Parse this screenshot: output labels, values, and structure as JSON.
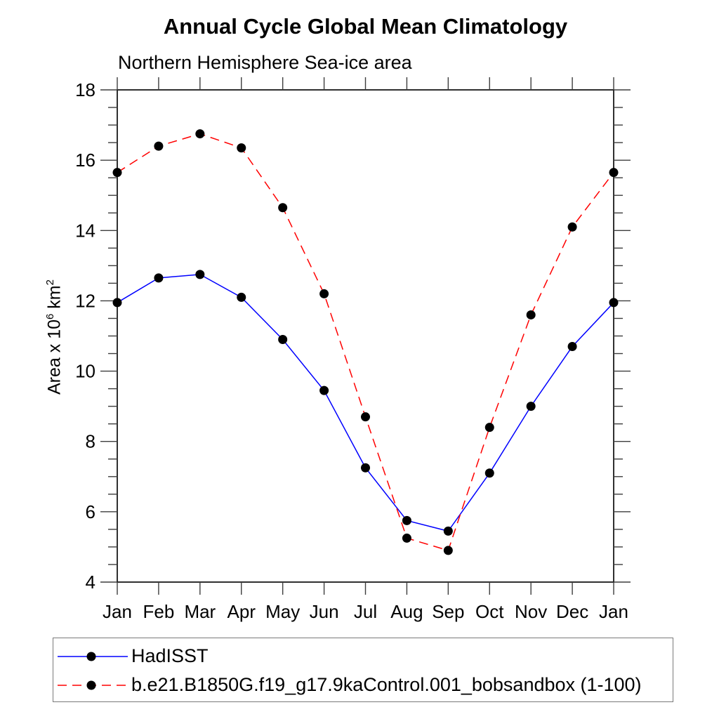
{
  "titles": {
    "main": "Annual Cycle Global Mean Climatology",
    "sub": "Northern Hemisphere Sea-ice area"
  },
  "y_axis": {
    "label_base": "Area x 10",
    "label_sup": "6",
    "label_unit": " km",
    "label_unit_sup": "2",
    "tick_labels": [
      "4",
      "6",
      "8",
      "10",
      "12",
      "14",
      "16",
      "18"
    ]
  },
  "x_axis": {
    "tick_labels": [
      "Jan",
      "Feb",
      "Mar",
      "Apr",
      "May",
      "Jun",
      "Jul",
      "Aug",
      "Sep",
      "Oct",
      "Nov",
      "Dec",
      "Jan"
    ]
  },
  "colors": {
    "hadisst_line": "#0000ff",
    "model_line": "#ff0000",
    "marker": "#000000",
    "axis": "#1a1a1a",
    "tick": "#3d3d3d"
  },
  "chart_data": {
    "type": "line",
    "title": "Annual Cycle Global Mean Climatology",
    "subtitle": "Northern Hemisphere Sea-ice area",
    "categories": [
      "Jan",
      "Feb",
      "Mar",
      "Apr",
      "May",
      "Jun",
      "Jul",
      "Aug",
      "Sep",
      "Oct",
      "Nov",
      "Dec",
      "Jan"
    ],
    "series": [
      {
        "name": "HadISST",
        "line_color": "#0000ff",
        "line_style": "solid",
        "marker": "filled-circle",
        "marker_color": "#000000",
        "values": [
          11.95,
          12.65,
          12.75,
          12.1,
          10.9,
          9.45,
          7.25,
          5.75,
          5.45,
          7.1,
          9.0,
          10.7,
          11.95
        ]
      },
      {
        "name": "b.e21.B1850G.f19_g17.9kaControl.001_bobsandbox (1-100)",
        "line_color": "#ff0000",
        "line_style": "dashed",
        "marker": "filled-circle",
        "marker_color": "#000000",
        "values": [
          15.65,
          16.4,
          16.75,
          16.35,
          14.65,
          12.2,
          8.7,
          5.25,
          4.9,
          8.4,
          11.6,
          14.1,
          15.65
        ]
      }
    ],
    "xlabel": "",
    "ylabel": "Area x 10^6 km^2",
    "ylim": [
      4,
      18
    ],
    "ytick_major_step": 2,
    "ytick_minor_step": 0.5,
    "grid": false,
    "legend_position": "bottom-left"
  }
}
